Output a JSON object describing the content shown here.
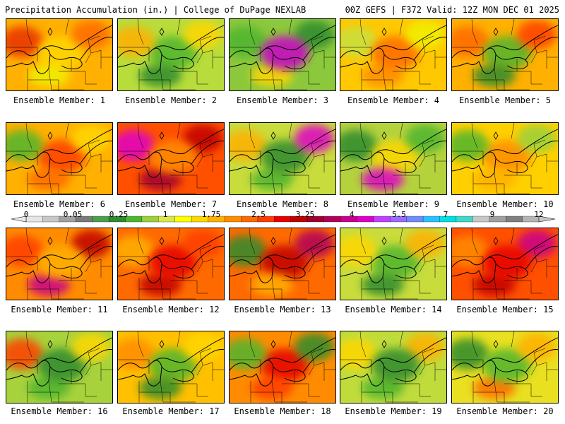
{
  "header": {
    "title": "Precipitation Accumulation (in.) | College of DuPage NEXLAB",
    "run_info": "00Z GEFS | F372 Valid: 12Z MON DEC 01 2025"
  },
  "colorbar": {
    "ticks": [
      "0",
      "0.05",
      "0.25",
      "1",
      "1.75",
      "2.5",
      "3.25",
      "4",
      "5.5",
      "7",
      "9",
      "12"
    ],
    "colors": [
      "#e6e6e6",
      "#c8c8c8",
      "#a0a0a0",
      "#7a7a7a",
      "#4d9e4d",
      "#2e8b2e",
      "#4fb52f",
      "#9ad13c",
      "#d8e84a",
      "#ffff00",
      "#ffd700",
      "#ffb000",
      "#ff8c00",
      "#ff6a00",
      "#ff3c00",
      "#e60000",
      "#c00000",
      "#a00030",
      "#b0005a",
      "#c8008c",
      "#e000c8",
      "#c040ff",
      "#9b6bff",
      "#6f8cff",
      "#2ac0ff",
      "#00e0e0",
      "#40d8c8",
      "#c8c8c8",
      "#a0a0a0",
      "#808080",
      "#b4b4b4"
    ]
  },
  "members": [
    {
      "label": "Ensemble Member: 1",
      "base": "#ffb000",
      "blobs": [
        "#e83200",
        "#ffd700",
        "#ff6a00",
        "#f0f000"
      ]
    },
    {
      "label": "Ensemble Member: 2",
      "base": "#b8dc3c",
      "blobs": [
        "#4fb52f",
        "#ffd700",
        "#2e8b2e",
        "#ffb000"
      ]
    },
    {
      "label": "Ensemble Member: 3",
      "base": "#8cc83c",
      "blobs": [
        "#2e8b2e",
        "#ffd700",
        "#4fb52f",
        "#c800c8"
      ]
    },
    {
      "label": "Ensemble Member: 4",
      "base": "#ffc800",
      "blobs": [
        "#ff8c00",
        "#c8e040",
        "#ff6a00",
        "#f0f000"
      ]
    },
    {
      "label": "Ensemble Member: 5",
      "base": "#ffb000",
      "blobs": [
        "#ff6a00",
        "#4fb52f",
        "#ff3c00",
        "#2e8b2e"
      ]
    },
    {
      "label": "Ensemble Member: 6",
      "base": "#ffb000",
      "blobs": [
        "#ff3c00",
        "#ffd700",
        "#ff6a00",
        "#4fb52f"
      ]
    },
    {
      "label": "Ensemble Member: 7",
      "base": "#ff5000",
      "blobs": [
        "#c00000",
        "#a00030",
        "#e000c8",
        "#ff8c00"
      ]
    },
    {
      "label": "Ensemble Member: 8",
      "base": "#c8dc3c",
      "blobs": [
        "#4fb52f",
        "#ffb000",
        "#2e8b2e",
        "#e000c8"
      ]
    },
    {
      "label": "Ensemble Member: 9",
      "base": "#b4d23c",
      "blobs": [
        "#2e8b2e",
        "#ffd700",
        "#4fb52f",
        "#e000c8"
      ]
    },
    {
      "label": "Ensemble Member: 10",
      "base": "#ffd000",
      "blobs": [
        "#ff8c00",
        "#9ad13c",
        "#ffb000",
        "#4fb52f"
      ]
    },
    {
      "label": "Ensemble Member: 11",
      "base": "#ff8c00",
      "blobs": [
        "#c00000",
        "#c8008c",
        "#ff3c00",
        "#ffb000"
      ]
    },
    {
      "label": "Ensemble Member: 12",
      "base": "#ff6a00",
      "blobs": [
        "#c00000",
        "#ffb000",
        "#e60000",
        "#ff3c00"
      ]
    },
    {
      "label": "Ensemble Member: 13",
      "base": "#ff6a00",
      "blobs": [
        "#2e8b2e",
        "#c00000",
        "#b0005a",
        "#ffb000"
      ]
    },
    {
      "label": "Ensemble Member: 14",
      "base": "#c8dc3c",
      "blobs": [
        "#4fb52f",
        "#ffb000",
        "#2e8b2e",
        "#ffd700"
      ]
    },
    {
      "label": "Ensemble Member: 15",
      "base": "#ff5000",
      "blobs": [
        "#c8008c",
        "#c00000",
        "#ff8c00",
        "#e60000"
      ]
    },
    {
      "label": "Ensemble Member: 16",
      "base": "#a8d23c",
      "blobs": [
        "#4fb52f",
        "#ff3c00",
        "#2e8b2e",
        "#ffd700"
      ]
    },
    {
      "label": "Ensemble Member: 17",
      "base": "#ffc000",
      "blobs": [
        "#ff8c00",
        "#4fb52f",
        "#ffd700",
        "#2e8b2e"
      ]
    },
    {
      "label": "Ensemble Member: 18",
      "base": "#ff8c00",
      "blobs": [
        "#e60000",
        "#2e8b2e",
        "#ff3c00",
        "#4fb52f"
      ]
    },
    {
      "label": "Ensemble Member: 19",
      "base": "#c0dc3c",
      "blobs": [
        "#ffb000",
        "#4fb52f",
        "#ffd700",
        "#2e8b2e"
      ]
    },
    {
      "label": "Ensemble Member: 20",
      "base": "#e8e020",
      "blobs": [
        "#ff6a00",
        "#2e8b2e",
        "#4fb52f",
        "#ffb000"
      ]
    }
  ]
}
